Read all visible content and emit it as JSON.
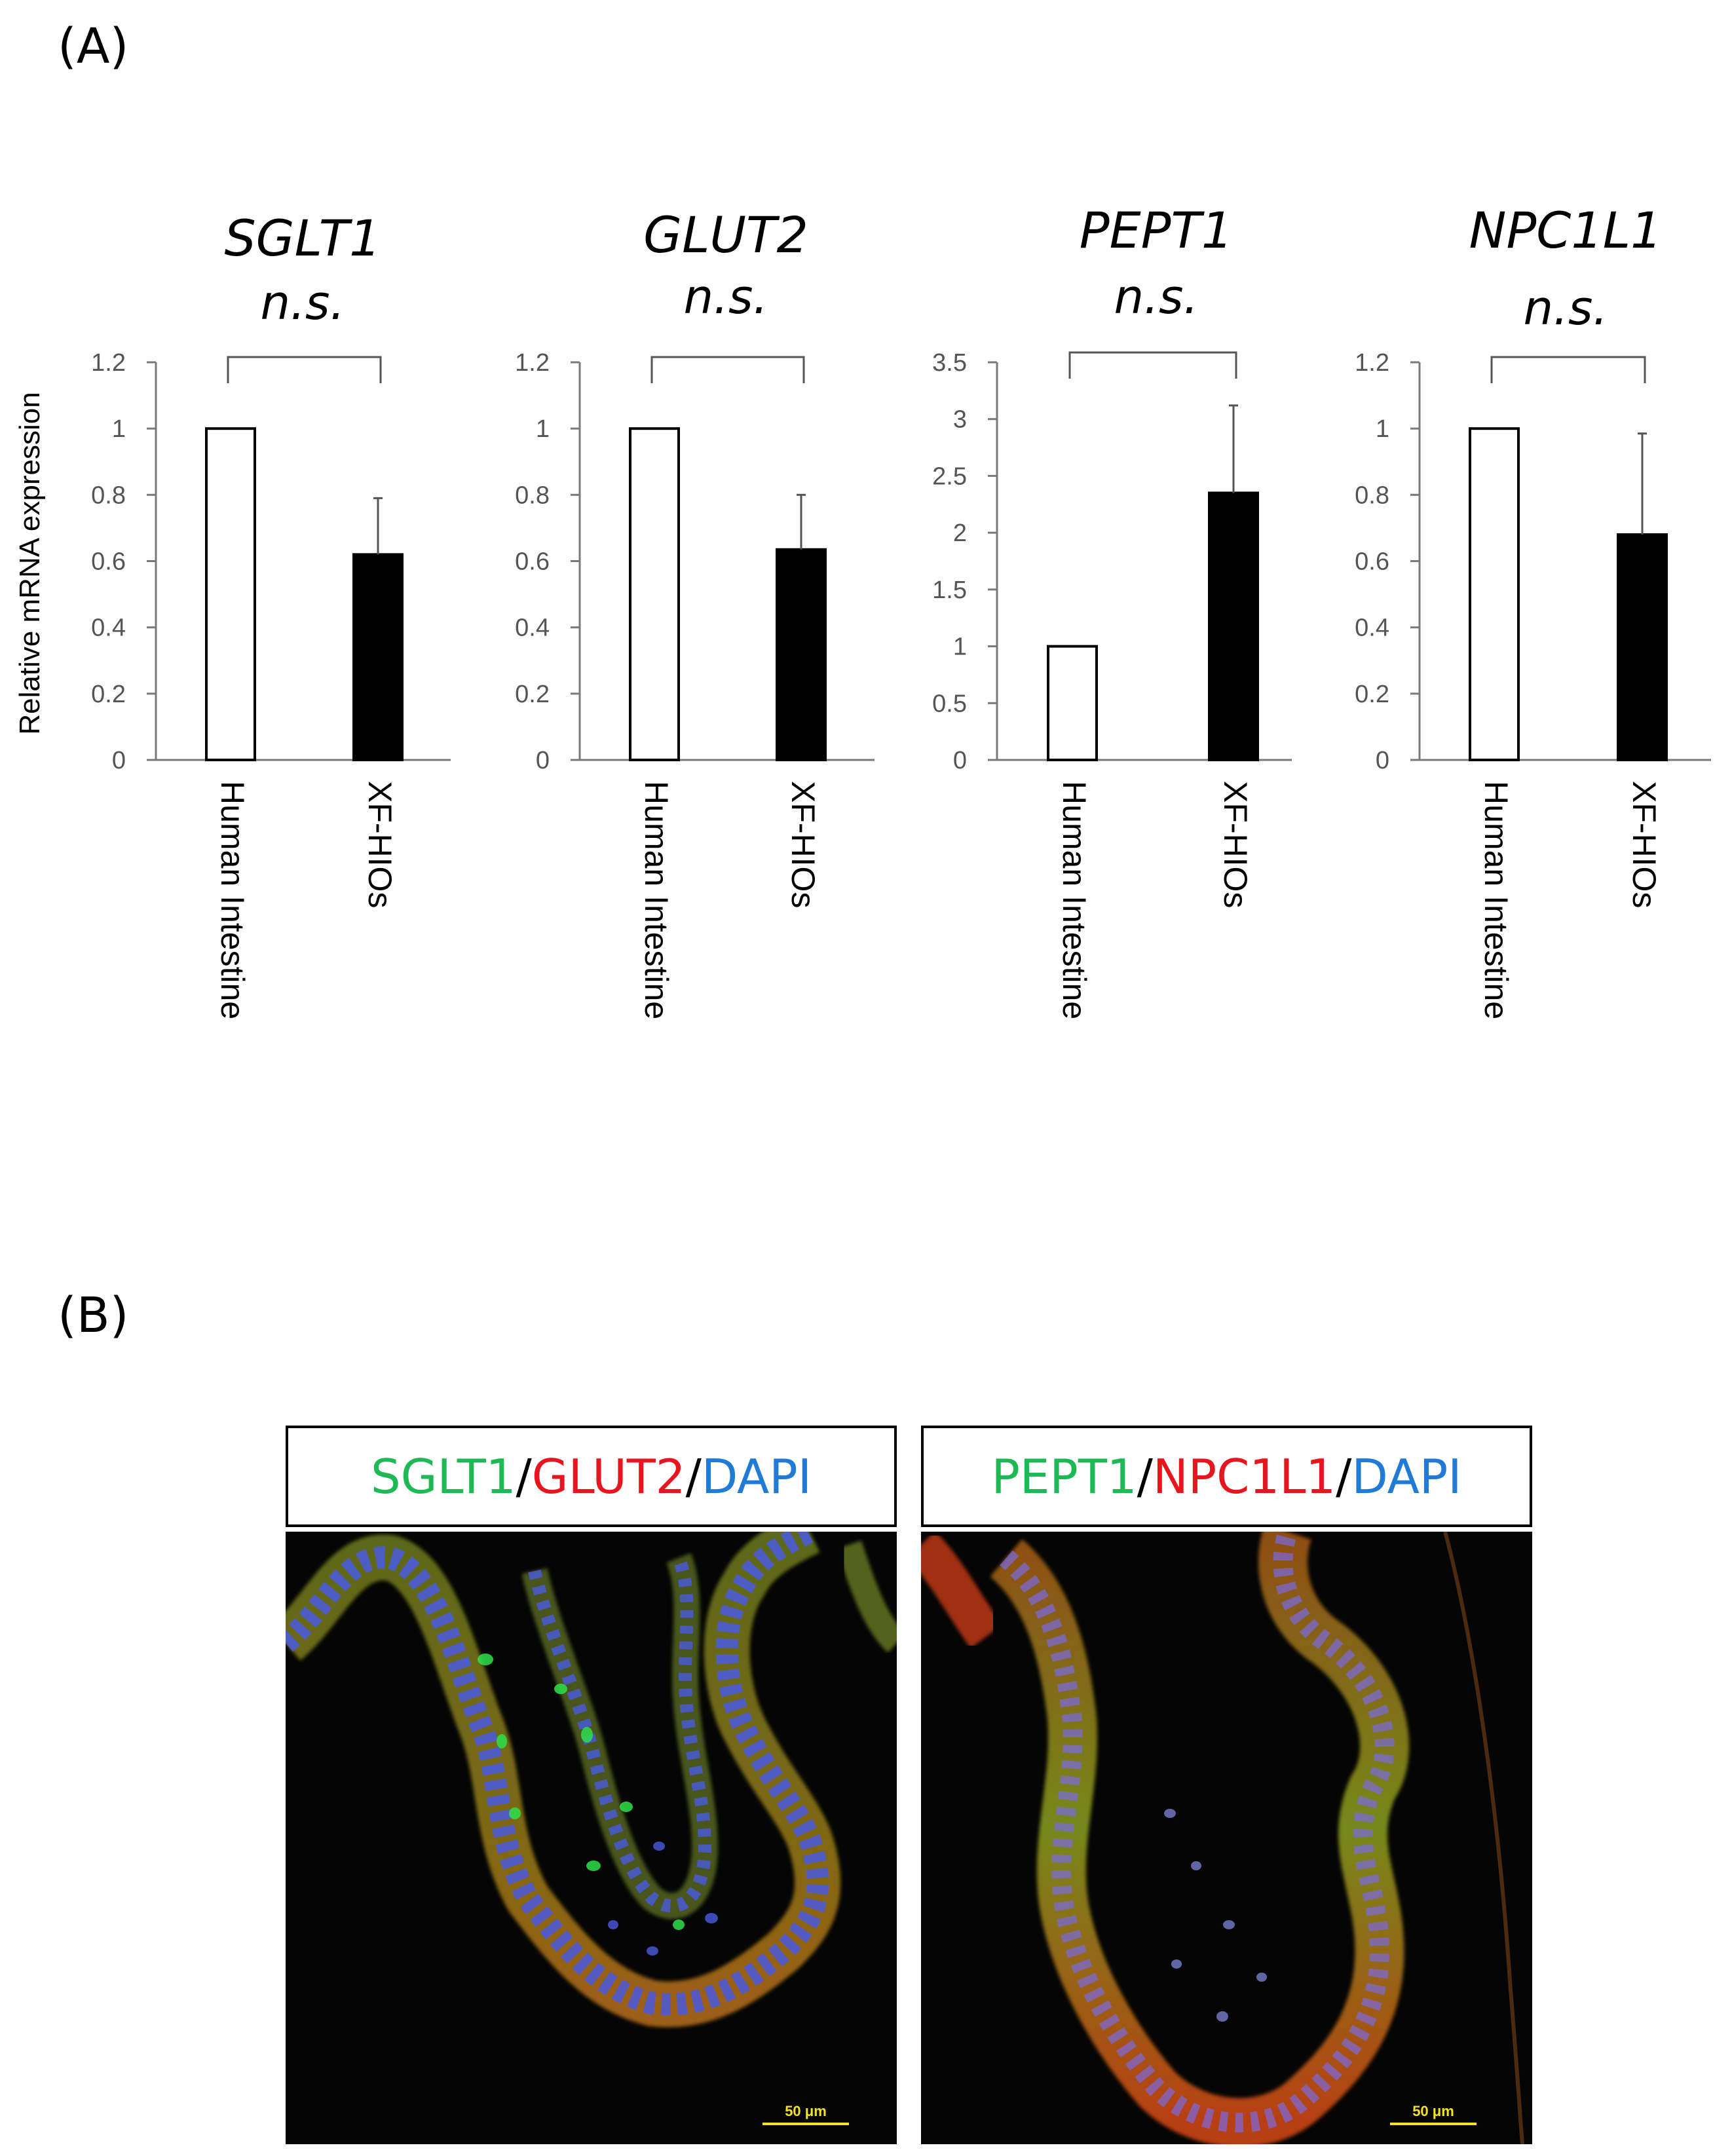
{
  "panels": {
    "A": "(A)",
    "B": "(B)"
  },
  "chart_data": [
    {
      "type": "bar",
      "title": "SGLT1",
      "significance": "n.s.",
      "ylabel": "Relative mRNA expression",
      "categories": [
        "Human Intestine",
        "XF-HIOs"
      ],
      "values": [
        1.0,
        0.62
      ],
      "errors": [
        0,
        0.17
      ],
      "ylim": [
        0,
        1.2
      ],
      "yticks": [
        "0",
        "0.2",
        "0.4",
        "0.6",
        "0.8",
        "1",
        "1.2"
      ],
      "bar_colors": [
        "#ffffff",
        "#000000"
      ],
      "grid": false
    },
    {
      "type": "bar",
      "title": "GLUT2",
      "significance": "n.s.",
      "ylabel": "",
      "categories": [
        "Human Intestine",
        "XF-HIOs"
      ],
      "values": [
        1.0,
        0.635
      ],
      "errors": [
        0,
        0.165
      ],
      "ylim": [
        0,
        1.2
      ],
      "yticks": [
        "0",
        "0.2",
        "0.4",
        "0.6",
        "0.8",
        "1",
        "1.2"
      ],
      "bar_colors": [
        "#ffffff",
        "#000000"
      ],
      "grid": false
    },
    {
      "type": "bar",
      "title": "PEPT1",
      "significance": "n.s.",
      "ylabel": "",
      "categories": [
        "Human Intestine",
        "XF-HIOs"
      ],
      "values": [
        1.0,
        2.35
      ],
      "errors": [
        0,
        0.77
      ],
      "ylim": [
        0,
        3.5
      ],
      "yticks": [
        "0",
        "0.5",
        "1",
        "1.5",
        "2",
        "2.5",
        "3",
        "3.5"
      ],
      "bar_colors": [
        "#ffffff",
        "#000000"
      ],
      "grid": false
    },
    {
      "type": "bar",
      "title": "NPC1L1",
      "significance": "n.s.",
      "ylabel": "",
      "categories": [
        "Human Intestine",
        "XF-HIOs"
      ],
      "values": [
        1.0,
        0.68
      ],
      "errors": [
        0,
        0.305
      ],
      "ylim": [
        0,
        1.2
      ],
      "yticks": [
        "0",
        "0.2",
        "0.4",
        "0.6",
        "0.8",
        "1",
        "1.2"
      ],
      "bar_colors": [
        "#ffffff",
        "#000000"
      ],
      "grid": false
    }
  ],
  "images": [
    {
      "legend": [
        {
          "text": "SGLT1",
          "color": "#1db954"
        },
        {
          "text": "/",
          "color": "#000000"
        },
        {
          "text": "GLUT2",
          "color": "#e8141e"
        },
        {
          "text": "/",
          "color": "#000000"
        },
        {
          "text": "DAPI",
          "color": "#1f7bd6"
        }
      ],
      "scale_bar": "50 μm"
    },
    {
      "legend": [
        {
          "text": "PEPT1",
          "color": "#1db954"
        },
        {
          "text": "/",
          "color": "#000000"
        },
        {
          "text": "NPC1L1",
          "color": "#e8141e"
        },
        {
          "text": "/",
          "color": "#000000"
        },
        {
          "text": "DAPI",
          "color": "#1f7bd6"
        }
      ],
      "scale_bar": "50 μm"
    }
  ]
}
